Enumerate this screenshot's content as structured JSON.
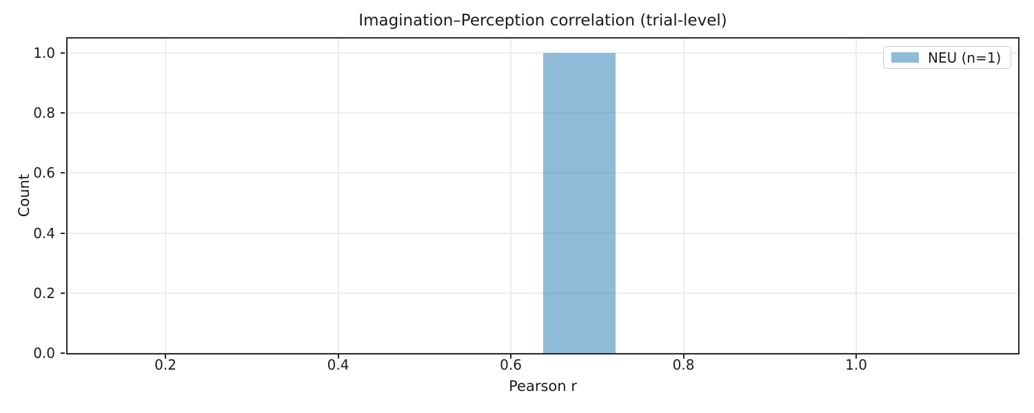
{
  "figure": {
    "title": "Imagination–Perception correlation (trial-level)",
    "xlabel": "Pearson r",
    "ylabel": "Count"
  },
  "legend": {
    "position": "upper right",
    "entries": [
      {
        "label": "NEU (n=1)",
        "swatch": "light-blue-rect"
      }
    ]
  },
  "colors": {
    "bar_fill": "rgba(31, 119, 180, 0.5)",
    "bar_on_white_hex": "#8fbbd9",
    "spine": "#262626",
    "grid": "#ececec",
    "text": "#1a1a1a",
    "legend_border": "#cccccc"
  },
  "chart_data": {
    "type": "bar",
    "subtype": "histogram",
    "title": "Imagination–Perception correlation (trial-level)",
    "xlabel": "Pearson r",
    "ylabel": "Count",
    "grid": true,
    "legend_position": "upper right",
    "xlim": [
      0.0866,
      1.1876
    ],
    "ylim": [
      0,
      1.0482
    ],
    "xticks": [
      0.2,
      0.4,
      0.6,
      0.8,
      1.0
    ],
    "yticks": [
      0.0,
      0.2,
      0.4,
      0.6,
      0.8,
      1.0
    ],
    "tick_decimals": 1,
    "series": [
      {
        "name": "NEU (n=1)",
        "n": 1,
        "bins": [
          {
            "x0": 0.6375,
            "x1": 0.7214,
            "count": 1
          }
        ]
      }
    ]
  }
}
